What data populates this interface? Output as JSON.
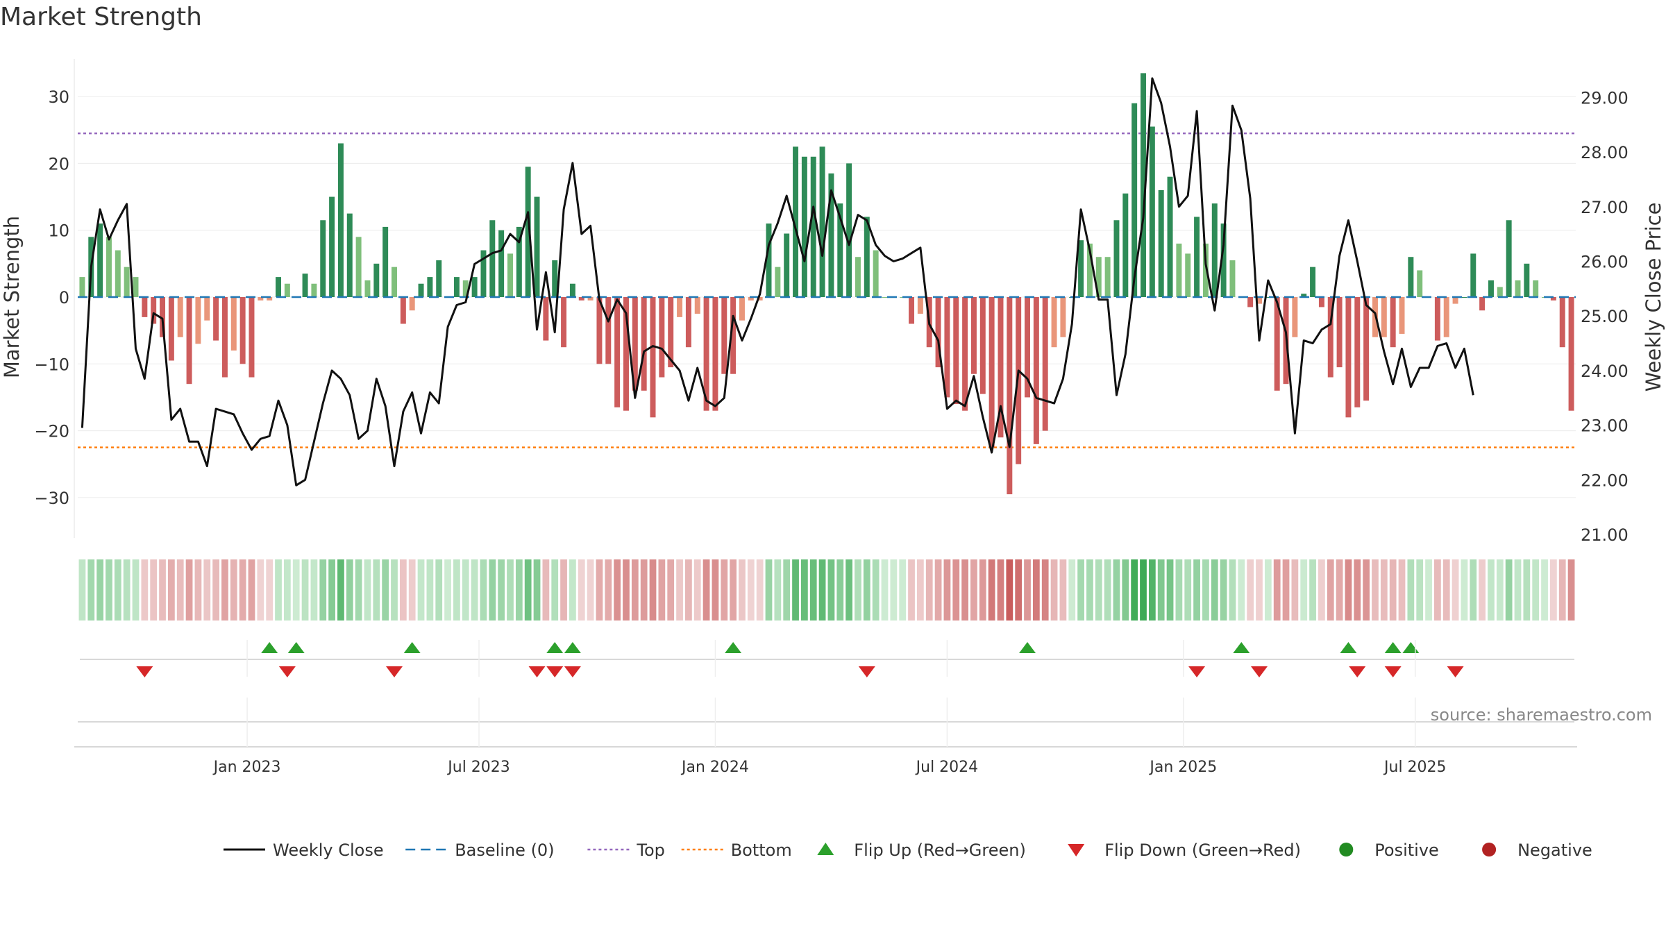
{
  "title": "Market Strength",
  "source": "source: sharemaestro.com",
  "colors": {
    "strong_green": "#2e8b57",
    "light_green": "#7fbf7b",
    "strong_red": "#cd5c5c",
    "light_red": "#e9967a",
    "close_line": "#111111",
    "baseline": "#1f77b4",
    "top_line": "#9467bd",
    "bottom_line": "#ff7f0e",
    "flip_up": "#2ca02c",
    "flip_down": "#d62728",
    "positive": "#228b22",
    "negative": "#b22222"
  },
  "legend": [
    {
      "label": "Weekly Close",
      "icon": "solid-line",
      "color": "#111111"
    },
    {
      "label": "Baseline (0)",
      "icon": "dashed-line",
      "color": "#1f77b4"
    },
    {
      "label": "Top",
      "icon": "dotted-line",
      "color": "#9467bd"
    },
    {
      "label": "Bottom",
      "icon": "dotted-line",
      "color": "#ff7f0e"
    },
    {
      "label": "Flip Up (Red→Green)",
      "icon": "triangle-up",
      "color": "#2ca02c"
    },
    {
      "label": "Flip Down (Green→Red)",
      "icon": "triangle-down",
      "color": "#d62728"
    },
    {
      "label": "Positive",
      "icon": "circle",
      "color": "#228b22"
    },
    {
      "label": "Negative",
      "icon": "circle",
      "color": "#b22222"
    }
  ],
  "chart_data": {
    "type": "bar",
    "title": "Market Strength",
    "ylabel_left": "Market Strength",
    "ylabel_right": "Weekly Close Price",
    "ylim_left": [
      -36,
      36
    ],
    "ylim_right": [
      20.8,
      30.0
    ],
    "left_ticks": [
      30,
      20,
      10,
      0,
      -10,
      -20,
      -30
    ],
    "left_tick_labels": [
      "30",
      "20",
      "10",
      "0",
      "−10",
      "−20",
      "−30"
    ],
    "right_ticks": [
      29,
      28,
      27,
      26,
      25,
      24,
      23,
      22,
      21
    ],
    "right_tick_labels": [
      "29.00",
      "28.00",
      "27.00",
      "26.00",
      "25.00",
      "24.00",
      "23.00",
      "22.00",
      "21.00"
    ],
    "x_ticks": [
      {
        "week": 18.5,
        "label": "Jan 2023"
      },
      {
        "week": 44.5,
        "label": "Jul 2023"
      },
      {
        "week": 71,
        "label": "Jan 2024"
      },
      {
        "week": 97,
        "label": "Jul 2024"
      },
      {
        "week": 123.5,
        "label": "Jan 2025"
      },
      {
        "week": 149.5,
        "label": "Jul 2025"
      }
    ],
    "top_level": 24.5,
    "bottom_level": -22.5,
    "baseline": 0,
    "strength": [
      3,
      9,
      11,
      9,
      7,
      4.5,
      3,
      -3,
      -4,
      -6,
      -9.5,
      -6,
      -13,
      -7,
      -3.5,
      -6.5,
      -12,
      -8,
      -10,
      -12,
      -0.5,
      -0.5,
      3,
      2,
      0,
      3.5,
      2,
      11.5,
      15,
      23,
      12.5,
      9,
      2.5,
      5,
      10.5,
      4.5,
      -4,
      -2,
      2,
      3,
      5.5,
      0,
      3,
      2.5,
      3,
      7,
      11.5,
      10,
      6.5,
      10.5,
      19.5,
      15,
      -6.5,
      5.5,
      -7.5,
      2,
      -0.5,
      -0.5,
      -10,
      -10,
      -16.5,
      -17,
      -14,
      -14,
      -18,
      -12,
      -10.5,
      -3,
      -7.5,
      -2.5,
      -17,
      -17,
      -11.5,
      -11.5,
      -3.5,
      -0.5,
      -0.5,
      11,
      4.5,
      9.5,
      22.5,
      21,
      21,
      22.5,
      18.5,
      14,
      20,
      6,
      12,
      7,
      0,
      0,
      0,
      -4,
      -2.5,
      -7.5,
      -10.5,
      -15,
      -16,
      -17,
      -11.5,
      -14.5,
      -22.5,
      -21,
      -29.5,
      -25,
      -15,
      -22,
      -20,
      -7.5,
      -6,
      0,
      8.5,
      8,
      6,
      6,
      11.5,
      15.5,
      29,
      33.5,
      25.5,
      16,
      18,
      8,
      6.5,
      12,
      8,
      14,
      11,
      5.5,
      0,
      -1.5,
      -1,
      0,
      -14,
      -13,
      -6,
      0.5,
      4.5,
      -1.5,
      -12,
      -10.5,
      -18,
      -16.5,
      -15.5,
      -6,
      -6,
      -7.5,
      -5.5,
      6,
      4,
      0,
      -6.5,
      -6,
      -1,
      0,
      6.5,
      -2,
      2.5,
      1.5,
      11.5,
      2.5,
      5,
      2.5,
      0,
      -0.5,
      -7.5,
      -17
    ],
    "weekly_close": [
      22.95,
      25.9,
      26.95,
      26.4,
      26.75,
      27.05,
      24.4,
      23.85,
      25.05,
      24.95,
      23.1,
      23.3,
      22.7,
      22.7,
      22.25,
      23.3,
      23.25,
      23.2,
      22.85,
      22.55,
      22.75,
      22.8,
      23.45,
      23.0,
      21.9,
      22.0,
      22.7,
      23.4,
      24.0,
      23.85,
      23.55,
      22.75,
      22.9,
      23.85,
      23.35,
      22.25,
      23.25,
      23.6,
      22.85,
      23.6,
      23.4,
      24.8,
      25.2,
      25.25,
      25.95,
      26.05,
      26.15,
      26.2,
      26.5,
      26.35,
      26.9,
      24.75,
      25.8,
      24.7,
      26.95,
      27.8,
      26.5,
      26.65,
      25.3,
      24.9,
      25.3,
      25.05,
      23.5,
      24.35,
      24.45,
      24.4,
      24.2,
      24.0,
      23.45,
      24.05,
      23.45,
      23.35,
      23.5,
      25.0,
      24.55,
      24.95,
      25.4,
      26.3,
      26.7,
      27.2,
      26.6,
      26.0,
      27.0,
      26.1,
      27.3,
      26.8,
      26.3,
      26.85,
      26.75,
      26.3,
      26.1,
      26.0,
      26.05,
      26.15,
      26.25,
      24.85,
      24.55,
      23.3,
      23.45,
      23.35,
      23.9,
      23.15,
      22.5,
      23.35,
      22.6,
      24.0,
      23.85,
      23.5,
      23.45,
      23.4,
      23.85,
      24.85,
      26.95,
      26.2,
      25.3,
      25.3,
      23.55,
      24.3,
      25.7,
      26.8,
      29.35,
      28.9,
      28.1,
      27.0,
      27.2,
      28.75,
      25.95,
      25.1,
      26.3,
      28.85,
      28.4,
      27.15,
      24.55,
      25.65,
      25.25,
      24.7,
      22.85,
      24.55,
      24.5,
      24.75,
      24.85,
      26.1,
      26.75,
      26.0,
      25.2,
      25.05,
      24.35,
      23.75,
      24.4,
      23.7,
      24.05,
      24.05,
      24.45,
      24.5,
      24.05,
      24.4,
      23.55
    ],
    "flip_up_weeks": [
      21,
      24,
      37,
      53,
      55,
      73,
      106,
      130,
      142,
      147,
      149
    ],
    "flip_down_weeks": [
      7,
      23,
      35,
      51,
      53,
      55,
      88,
      125,
      132,
      143,
      147,
      154
    ]
  }
}
